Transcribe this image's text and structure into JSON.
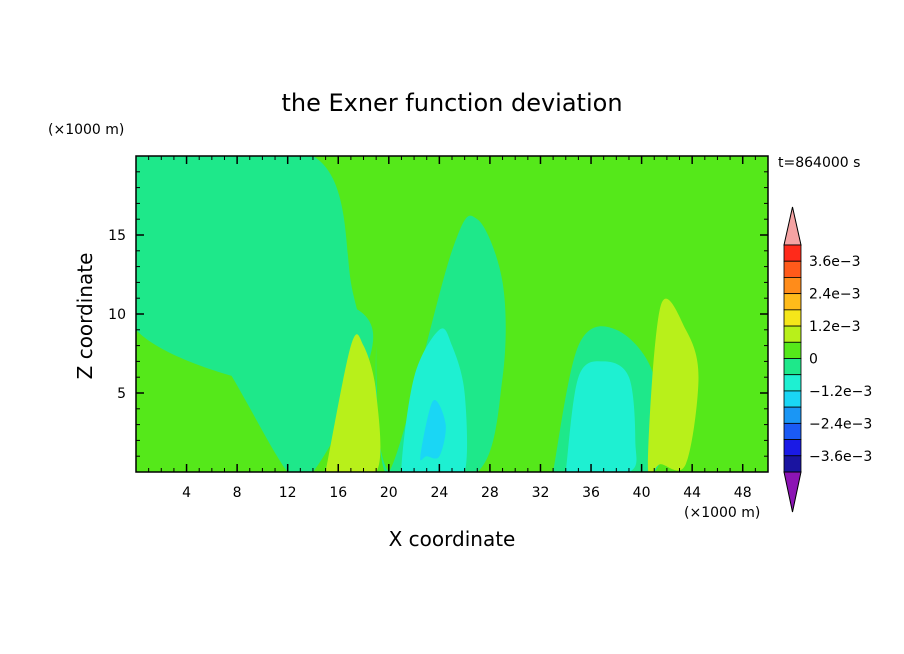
{
  "chart_data": {
    "type": "heatmap",
    "title": "the Exner function deviation",
    "xlabel": "X coordinate",
    "ylabel": "Z coordinate",
    "x_unit": "(×1000 m)",
    "y_unit": "(×1000 m)",
    "time_label": "t=864000 s",
    "xlim": [
      0,
      50
    ],
    "ylim": [
      0,
      20
    ],
    "x_ticks": [
      "4",
      "8",
      "12",
      "16",
      "20",
      "24",
      "28",
      "32",
      "36",
      "40",
      "44",
      "48"
    ],
    "y_ticks": [
      "5",
      "10",
      "15"
    ],
    "colorbar": {
      "labels": [
        "3.6e−3",
        "2.4e−3",
        "1.2e−3",
        "0",
        "−1.2e−3",
        "−2.4e−3",
        "−3.6e−3"
      ],
      "levels_top_to_bottom": [
        {
          "from": 0.0036,
          "to": 0.0042,
          "color": "#ff2a1a"
        },
        {
          "from": 0.003,
          "to": 0.0036,
          "color": "#ff5a1a"
        },
        {
          "from": 0.0024,
          "to": 0.003,
          "color": "#ff8c1a"
        },
        {
          "from": 0.0018,
          "to": 0.0024,
          "color": "#ffbb1a"
        },
        {
          "from": 0.0012,
          "to": 0.0018,
          "color": "#f5e61a"
        },
        {
          "from": 0.0006,
          "to": 0.0012,
          "color": "#b8f01a"
        },
        {
          "from": 0.0,
          "to": 0.0006,
          "color": "#55e81a"
        },
        {
          "from": -0.0006,
          "to": 0.0,
          "color": "#1ee88a"
        },
        {
          "from": -0.0012,
          "to": -0.0006,
          "color": "#1ef0d2"
        },
        {
          "from": -0.0018,
          "to": -0.0012,
          "color": "#1ad6f5"
        },
        {
          "from": -0.0024,
          "to": -0.0018,
          "color": "#1a96f5"
        },
        {
          "from": -0.003,
          "to": -0.0024,
          "color": "#1a5af5"
        },
        {
          "from": -0.0036,
          "to": -0.003,
          "color": "#1a1ae6"
        },
        {
          "from": -0.0042,
          "to": -0.0036,
          "color": "#1a14a0"
        }
      ],
      "over_color": "#f5a3a3",
      "under_color": "#8c14b4"
    },
    "background_level": 0.0003,
    "regions": [
      {
        "level": -0.0003,
        "shape": "band",
        "x": [
          2,
          2,
          10,
          18,
          18,
          14,
          12,
          6,
          2
        ],
        "z": [
          20,
          14,
          12,
          10,
          6,
          0,
          0,
          8,
          10
        ]
      },
      {
        "level": -0.0003,
        "shape": "region",
        "x": [
          0,
          14,
          17,
          17,
          0
        ],
        "z": [
          20,
          20,
          12,
          5,
          9
        ]
      },
      {
        "level": -0.0003,
        "shape": "region",
        "x": [
          20,
          25,
          27,
          29,
          29,
          27,
          20,
          19
        ],
        "z": [
          0,
          14,
          16,
          12,
          6,
          0,
          0,
          8
        ]
      },
      {
        "level": -0.0003,
        "shape": "region",
        "x": [
          33,
          35,
          38,
          41,
          41,
          33
        ],
        "z": [
          0,
          8,
          9,
          6,
          0,
          0
        ]
      },
      {
        "level": 0.0009,
        "shape": "region",
        "x": [
          15,
          17,
          18,
          19,
          19,
          15
        ],
        "z": [
          0,
          8,
          8,
          5,
          0,
          0
        ]
      },
      {
        "level": 0.0009,
        "shape": "region",
        "x": [
          40.5,
          41.5,
          43.5,
          44.5,
          43.5,
          41.5
        ],
        "z": [
          0.5,
          10.5,
          9,
          6,
          0.5,
          0.5
        ]
      },
      {
        "level": -0.0009,
        "shape": "region",
        "x": [
          21,
          22,
          24,
          25,
          26,
          26,
          24,
          22
        ],
        "z": [
          0,
          6,
          9,
          8,
          5,
          0,
          0,
          0
        ]
      },
      {
        "level": -0.0009,
        "shape": "region",
        "x": [
          34,
          35,
          37,
          39,
          39.5,
          39,
          34
        ],
        "z": [
          0,
          6,
          7,
          6,
          2,
          0,
          0
        ]
      },
      {
        "level": -0.0015,
        "shape": "region",
        "x": [
          22.5,
          23.5,
          24.5,
          24,
          23
        ],
        "z": [
          1,
          4.5,
          3,
          1,
          1
        ]
      }
    ]
  }
}
